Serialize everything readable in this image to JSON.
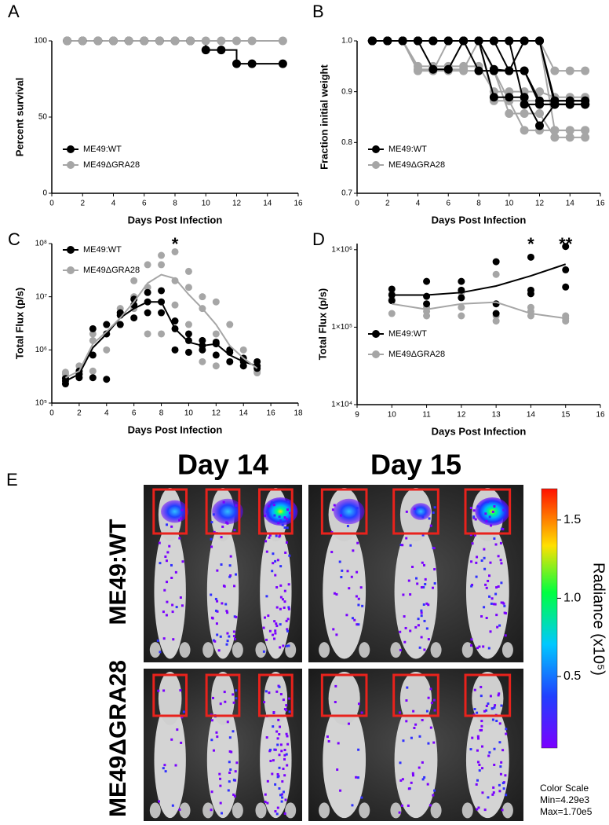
{
  "chart_data": [
    {
      "type": "step",
      "panel_label": "A",
      "xlabel": "Days Post Infection",
      "ylabel": "Percent survival",
      "xlim": [
        0,
        16
      ],
      "xticks": [
        0,
        2,
        4,
        6,
        8,
        10,
        12,
        14,
        16
      ],
      "ylim": [
        0,
        100
      ],
      "yticks": [
        0,
        50,
        100
      ],
      "legend": "lower left",
      "x": [
        1,
        2,
        3,
        4,
        5,
        6,
        7,
        8,
        9,
        10,
        11,
        12,
        13,
        15
      ],
      "series": [
        {
          "name": "ME49:WT",
          "color": "#000000",
          "values": [
            100,
            100,
            100,
            100,
            100,
            100,
            100,
            100,
            100,
            94,
            94,
            85,
            85,
            85
          ]
        },
        {
          "name": "ME49ΔGRA28",
          "color": "#a6a6a6",
          "values": [
            100,
            100,
            100,
            100,
            100,
            100,
            100,
            100,
            100,
            100,
            100,
            100,
            100,
            100
          ]
        }
      ]
    },
    {
      "type": "multiline",
      "panel_label": "B",
      "xlabel": "Days Post Infection",
      "ylabel": "Fraction initial weight",
      "xlim": [
        0,
        16
      ],
      "xticks": [
        0,
        2,
        4,
        6,
        8,
        10,
        12,
        14,
        16
      ],
      "ylim": [
        0.7,
        1
      ],
      "yticks": [
        0.7,
        0.8,
        0.9,
        {
          "value": 1,
          "label": "1.0"
        }
      ],
      "legend": "lower left",
      "x": [
        1,
        2,
        3,
        4,
        5,
        6,
        7,
        8,
        9,
        10,
        11,
        12,
        13,
        14,
        15
      ],
      "series": [
        {
          "name": "ME49:WT",
          "color": "#000000",
          "lines": [
            [
              1,
              1,
              1,
              1,
              1,
              1,
              1,
              1,
              1,
              1,
              1,
              1,
              0.875,
              0.875,
              0.875
            ],
            [
              1,
              1,
              1,
              1,
              0.944,
              0.944,
              1,
              1,
              0.944,
              0.941,
              0.941,
              0.882,
              0.882,
              0.882,
              0.882
            ],
            [
              1,
              1,
              1,
              1,
              1,
              1,
              1,
              1,
              0.889,
              0.889,
              0.889,
              0.833,
              0.875,
              0.875,
              0.875
            ],
            [
              1,
              1,
              1,
              1,
              1,
              1,
              1,
              0.941,
              0.941,
              0.941,
              0.941,
              0.875,
              0.875,
              0.875,
              0.875
            ],
            [
              1,
              1,
              1,
              1,
              1,
              1,
              1,
              1,
              1,
              1,
              0.875,
              0.875,
              0.875,
              0.875,
              0.875
            ],
            [
              1,
              1,
              1,
              1,
              1,
              1,
              1,
              1,
              1,
              0.941,
              1,
              1,
              0.882,
              0.882,
              0.882
            ]
          ]
        },
        {
          "name": "ME49ΔGRA28",
          "color": "#a6a6a6",
          "lines": [
            [
              1,
              1,
              1,
              0.944,
              0.944,
              0.944,
              0.944,
              1,
              1,
              1,
              1,
              1,
              0.941,
              0.941,
              0.941
            ],
            [
              1,
              1,
              1,
              0.941,
              0.941,
              0.941,
              0.941,
              0.941,
              0.941,
              0.882,
              0.882,
              0.882,
              0.882,
              0.882,
              0.882
            ],
            [
              1,
              1,
              1,
              0.941,
              0.941,
              1,
              1,
              1,
              0.882,
              0.882,
              0.824,
              0.824,
              0.824,
              0.824,
              0.824
            ],
            [
              1,
              1,
              1,
              1,
              1,
              1,
              1,
              1,
              0.941,
              0.857,
              0.857,
              0.857,
              0.81,
              0.81,
              0.81
            ],
            [
              1,
              1,
              1,
              0.95,
              0.95,
              0.95,
              0.95,
              0.95,
              0.9,
              0.9,
              0.9,
              0.9,
              0.889,
              0.889,
              0.889
            ],
            [
              1,
              1,
              1,
              1,
              1,
              1,
              1,
              1,
              1,
              1,
              1,
              1,
              0.824,
              0.824,
              0.824
            ]
          ]
        }
      ]
    },
    {
      "type": "scatter",
      "panel_label": "C",
      "xlabel": "Days Post Infection",
      "ylabel": "Total Flux (p/s)",
      "log_y": true,
      "xlim": [
        0,
        18
      ],
      "xticks": [
        0,
        2,
        4,
        6,
        8,
        10,
        12,
        14,
        16,
        18
      ],
      "ylim": [
        100000,
        100000000
      ],
      "yticks": [
        {
          "value": 100000,
          "label": "10⁵"
        },
        {
          "value": 1000000,
          "label": "10⁶"
        },
        {
          "value": 10000000,
          "label": "10⁷"
        },
        {
          "value": 100000000,
          "label": "10⁸"
        }
      ],
      "legend": "upper left",
      "annotations": [
        {
          "text": "*",
          "x": 9
        }
      ],
      "trend_x": [
        1,
        2,
        3,
        4,
        5,
        6,
        7,
        8,
        9,
        10,
        11,
        12,
        13,
        14,
        15
      ],
      "series": [
        {
          "name": "ME49:WT",
          "color": "#000000",
          "x": [
            1,
            1,
            1,
            2,
            2,
            2,
            3,
            3,
            3,
            4,
            4,
            4,
            5,
            5,
            5,
            6,
            6,
            6,
            7,
            7,
            7,
            8,
            8,
            8,
            9,
            9,
            9,
            10,
            10,
            10,
            11,
            11,
            11,
            12,
            12,
            12,
            13,
            13,
            13,
            14,
            14,
            14,
            15,
            15,
            15
          ],
          "values": [
            230000,
            260000,
            290000,
            300000,
            350000,
            400000,
            300000,
            800000,
            2500000,
            280000,
            2000000,
            3000000,
            3000000,
            5000000,
            4500000,
            4000000,
            7000000,
            9000000,
            5000000,
            8000000,
            12000000,
            5000000,
            8000000,
            13000000,
            1000000,
            2500000,
            3500000,
            900000,
            1500000,
            2000000,
            1000000,
            1200000,
            1500000,
            800000,
            1300000,
            1400000,
            600000,
            900000,
            1000000,
            500000,
            600000,
            700000,
            450000,
            500000,
            600000
          ],
          "trend": [
            260000,
            350000,
            1100000,
            2000000,
            4000000,
            6000000,
            8000000,
            8000000,
            2500000,
            1400000,
            1200000,
            1300000,
            800000,
            600000,
            500000
          ]
        },
        {
          "name": "ME49ΔGRA28",
          "color": "#a6a6a6",
          "x": [
            1,
            1,
            1,
            2,
            2,
            2,
            3,
            3,
            3,
            4,
            4,
            4,
            5,
            5,
            5,
            6,
            6,
            6,
            7,
            7,
            7,
            8,
            8,
            8,
            9,
            9,
            9,
            10,
            10,
            10,
            11,
            11,
            11,
            12,
            12,
            12,
            13,
            13,
            13,
            14,
            14,
            14,
            15,
            15,
            15
          ],
          "values": [
            300000,
            350000,
            380000,
            350000,
            400000,
            500000,
            1500000,
            2000000,
            400000,
            2000000,
            3000000,
            1000000,
            3000000,
            5000000,
            6000000,
            6000000,
            10000000,
            20000000,
            2000000,
            15000000,
            40000000,
            2000000,
            40000000,
            60000000,
            7000000,
            20000000,
            70000000,
            3000000,
            15000000,
            30000000,
            600000,
            6000000,
            10000000,
            500000,
            2000000,
            8000000,
            600000,
            1000000,
            3000000,
            600000,
            1000000,
            500000,
            370000,
            400000,
            500000
          ],
          "trend": [
            300000,
            400000,
            1300000,
            2200000,
            4000000,
            8000000,
            18000000,
            26000000,
            22000000,
            11000000,
            6000000,
            3000000,
            1200000,
            700000,
            450000
          ]
        }
      ]
    },
    {
      "type": "scatter",
      "panel_label": "D",
      "xlabel": "Days Post Infection",
      "ylabel": "Total Flux (p/s)",
      "log_y": true,
      "xlim": [
        9,
        16
      ],
      "xticks": [
        9,
        10,
        11,
        12,
        13,
        14,
        15,
        16
      ],
      "ylim": [
        10000,
        1200000
      ],
      "yticks": [
        {
          "value": 10000,
          "label": "1×10⁴"
        },
        {
          "value": 100000,
          "label": "1×10⁵"
        },
        {
          "value": 1000000,
          "label": "1×10⁶"
        }
      ],
      "legend": "lower left",
      "annotations": [
        {
          "text": "*",
          "x": 14
        },
        {
          "text": "**",
          "x": 15
        }
      ],
      "trend_x": [
        10,
        11,
        12,
        13,
        14,
        15
      ],
      "series": [
        {
          "name": "ME49:WT",
          "color": "#000000",
          "x": [
            10,
            10,
            10,
            11,
            11,
            11,
            12,
            12,
            12,
            13,
            13,
            13,
            14,
            14,
            14,
            15,
            15,
            15
          ],
          "values": [
            220000,
            260000,
            310000,
            200000,
            250000,
            390000,
            240000,
            300000,
            390000,
            150000,
            200000,
            700000,
            270000,
            300000,
            800000,
            330000,
            550000,
            1100000
          ],
          "trend": [
            260000,
            260000,
            280000,
            340000,
            460000,
            650000
          ]
        },
        {
          "name": "ME49ΔGRA28",
          "color": "#a6a6a6",
          "x": [
            10,
            10,
            10,
            11,
            11,
            11,
            12,
            12,
            12,
            13,
            13,
            13,
            14,
            14,
            14,
            15,
            15,
            15
          ],
          "values": [
            150000,
            230000,
            270000,
            140000,
            160000,
            180000,
            140000,
            180000,
            280000,
            120000,
            140000,
            480000,
            140000,
            160000,
            180000,
            120000,
            130000,
            140000
          ],
          "trend": [
            200000,
            170000,
            200000,
            210000,
            150000,
            130000
          ]
        }
      ]
    }
  ],
  "panel_e": {
    "panel_label": "E",
    "columns": [
      "Day 14",
      "Day 15"
    ],
    "rows": [
      "ME49:WT",
      "ME49ΔGRA28"
    ],
    "colorbar": {
      "label": "Radiance (x10⁵)",
      "lim": [
        0.0429,
        1.7
      ],
      "ticks": [
        0.5,
        {
          "value": 1,
          "label": "1.0"
        },
        1.5
      ]
    },
    "scale_note": [
      "Color Scale",
      "Min=4.29e3",
      "Max=1.70e5"
    ]
  }
}
